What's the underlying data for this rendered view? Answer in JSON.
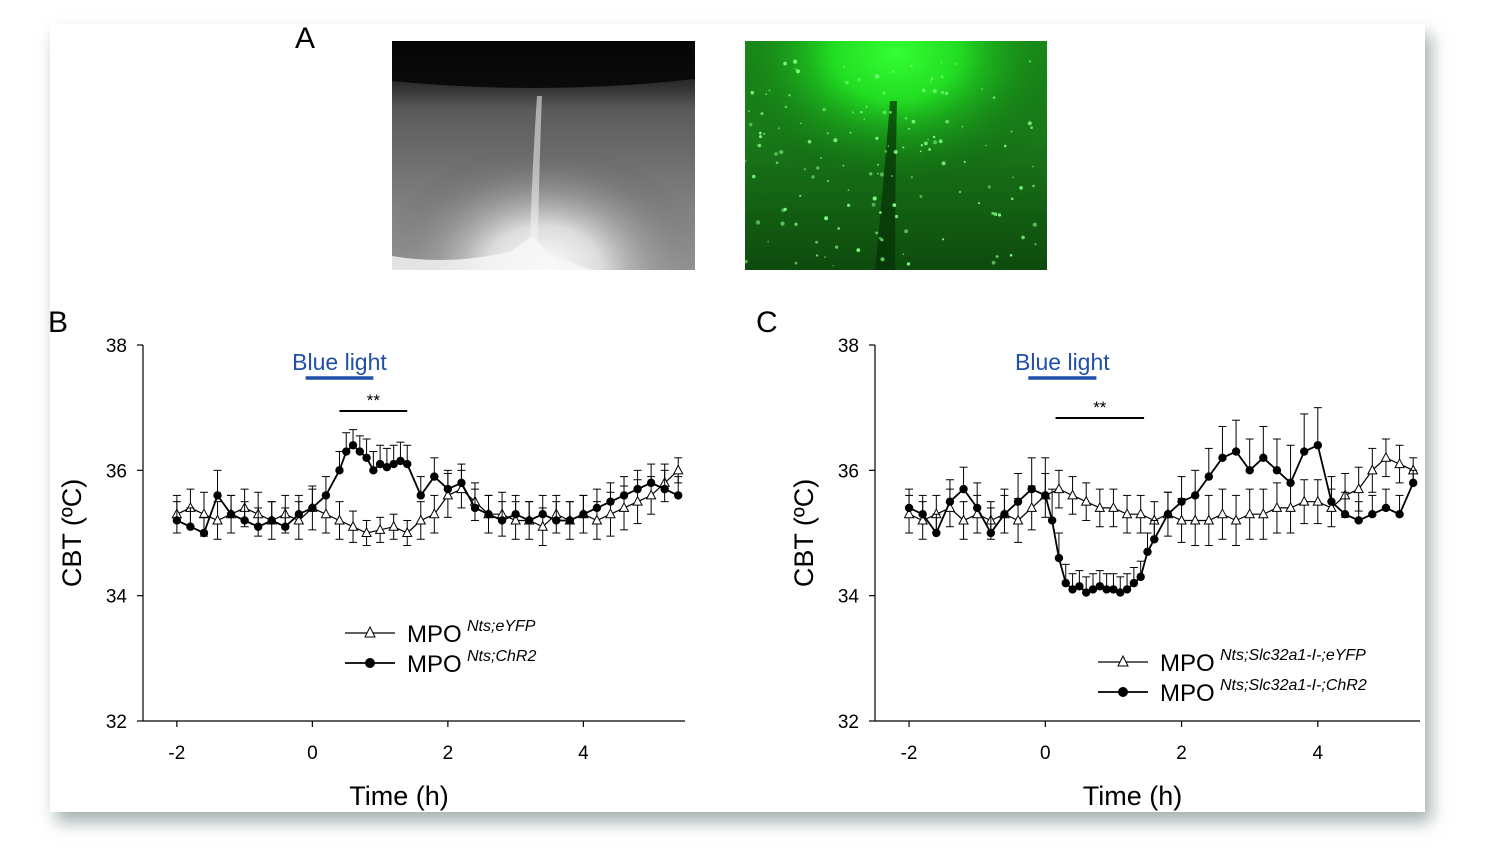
{
  "panels": {
    "a_label": "A",
    "b_label": "B",
    "c_label": "C"
  },
  "images": {
    "bright_field_icon": "brightfield-micrograph",
    "fluorescence_icon": "eyfp-fluorescence-micrograph"
  },
  "colors": {
    "blue_light": "#1f4fa8",
    "fluorescence": "#22dd22"
  },
  "chart_data": [
    {
      "type": "line",
      "panel": "B",
      "xlabel": "Time (h)",
      "ylabel": "CBT (ºC)",
      "xlim": [
        -2.5,
        5.5
      ],
      "ylim": [
        32,
        38
      ],
      "xticks": [
        -2,
        0,
        2,
        4
      ],
      "yticks": [
        32,
        34,
        36,
        38
      ],
      "light_label": "Blue light",
      "light_interval": [
        -0.1,
        0.9
      ],
      "sig_label": "**",
      "sig_interval": [
        0.4,
        1.4
      ],
      "legend_position": "bottom-center",
      "series": [
        {
          "name_main": "MPO",
          "name_sup": "Nts;eYFP",
          "marker": "open-triangle",
          "x": [
            -2,
            -1.8,
            -1.6,
            -1.4,
            -1.2,
            -1,
            -0.8,
            -0.6,
            -0.4,
            -0.2,
            0,
            0.2,
            0.4,
            0.6,
            0.8,
            1,
            1.2,
            1.4,
            1.6,
            1.8,
            2,
            2.2,
            2.4,
            2.6,
            2.8,
            3,
            3.2,
            3.4,
            3.6,
            3.8,
            4,
            4.2,
            4.4,
            4.6,
            4.8,
            5,
            5.2,
            5.4
          ],
          "y": [
            35.3,
            35.4,
            35.3,
            35.2,
            35.3,
            35.4,
            35.3,
            35.2,
            35.3,
            35.2,
            35.4,
            35.3,
            35.2,
            35.1,
            35.0,
            35.05,
            35.1,
            35.0,
            35.2,
            35.3,
            35.6,
            35.7,
            35.5,
            35.3,
            35.3,
            35.2,
            35.2,
            35.1,
            35.3,
            35.2,
            35.3,
            35.2,
            35.3,
            35.4,
            35.5,
            35.6,
            35.8,
            36.0
          ],
          "err": [
            0.3,
            0.3,
            0.35,
            0.3,
            0.3,
            0.3,
            0.35,
            0.3,
            0.3,
            0.3,
            0.35,
            0.3,
            0.3,
            0.25,
            0.2,
            0.2,
            0.2,
            0.2,
            0.3,
            0.3,
            0.35,
            0.3,
            0.3,
            0.3,
            0.35,
            0.3,
            0.3,
            0.3,
            0.3,
            0.3,
            0.3,
            0.3,
            0.35,
            0.35,
            0.35,
            0.3,
            0.3,
            0.2
          ]
        },
        {
          "name_main": "MPO",
          "name_sup": "Nts;ChR2",
          "marker": "filled-circle",
          "x": [
            -2,
            -1.8,
            -1.6,
            -1.4,
            -1.2,
            -1,
            -0.8,
            -0.6,
            -0.4,
            -0.2,
            0,
            0.2,
            0.4,
            0.5,
            0.6,
            0.7,
            0.8,
            0.9,
            1,
            1.1,
            1.2,
            1.3,
            1.4,
            1.6,
            1.8,
            2,
            2.2,
            2.4,
            2.6,
            2.8,
            3,
            3.2,
            3.4,
            3.6,
            3.8,
            4,
            4.2,
            4.4,
            4.6,
            4.8,
            5,
            5.2,
            5.4
          ],
          "y": [
            35.2,
            35.1,
            35.0,
            35.6,
            35.3,
            35.2,
            35.1,
            35.2,
            35.1,
            35.3,
            35.4,
            35.6,
            36.0,
            36.3,
            36.4,
            36.3,
            36.2,
            36.0,
            36.1,
            36.05,
            36.1,
            36.15,
            36.1,
            35.6,
            35.9,
            35.7,
            35.8,
            35.4,
            35.3,
            35.2,
            35.3,
            35.2,
            35.3,
            35.2,
            35.2,
            35.3,
            35.4,
            35.5,
            35.6,
            35.7,
            35.8,
            35.7,
            35.6
          ],
          "err": [
            0.3,
            0.3,
            0.25,
            0.4,
            0.3,
            0.3,
            0.3,
            0.3,
            0.3,
            0.3,
            0.3,
            0.3,
            0.3,
            0.3,
            0.25,
            0.25,
            0.3,
            0.3,
            0.3,
            0.3,
            0.3,
            0.3,
            0.3,
            0.3,
            0.3,
            0.3,
            0.3,
            0.3,
            0.3,
            0.3,
            0.3,
            0.3,
            0.3,
            0.3,
            0.3,
            0.3,
            0.3,
            0.3,
            0.3,
            0.3,
            0.3,
            0.3,
            0.3
          ]
        }
      ]
    },
    {
      "type": "line",
      "panel": "C",
      "xlabel": "Time (h)",
      "ylabel": "CBT (ºC)",
      "xlim": [
        -2.5,
        5.5
      ],
      "ylim": [
        32,
        38
      ],
      "xticks": [
        -2,
        0,
        2,
        4
      ],
      "yticks": [
        32,
        34,
        36,
        38
      ],
      "light_label": "Blue light",
      "light_interval": [
        -0.25,
        0.75
      ],
      "sig_label": "**",
      "sig_interval": [
        0.15,
        1.45
      ],
      "legend_position": "bottom-right",
      "series": [
        {
          "name_main": "MPO",
          "name_sup": "Nts;Slc32a1-I-;eYFP",
          "marker": "open-triangle",
          "x": [
            -2,
            -1.8,
            -1.6,
            -1.4,
            -1.2,
            -1,
            -0.8,
            -0.6,
            -0.4,
            -0.2,
            0,
            0.2,
            0.4,
            0.6,
            0.8,
            1,
            1.2,
            1.4,
            1.6,
            1.8,
            2,
            2.2,
            2.4,
            2.6,
            2.8,
            3,
            3.2,
            3.4,
            3.6,
            3.8,
            4,
            4.2,
            4.4,
            4.6,
            4.8,
            5,
            5.2,
            5.4
          ],
          "y": [
            35.3,
            35.2,
            35.3,
            35.4,
            35.2,
            35.3,
            35.2,
            35.3,
            35.2,
            35.4,
            35.6,
            35.7,
            35.6,
            35.5,
            35.4,
            35.4,
            35.3,
            35.3,
            35.2,
            35.3,
            35.2,
            35.2,
            35.2,
            35.3,
            35.2,
            35.3,
            35.3,
            35.4,
            35.4,
            35.5,
            35.5,
            35.4,
            35.6,
            35.7,
            36.0,
            36.2,
            36.1,
            36.0
          ],
          "err": [
            0.3,
            0.3,
            0.3,
            0.3,
            0.3,
            0.3,
            0.3,
            0.3,
            0.35,
            0.35,
            0.35,
            0.3,
            0.3,
            0.3,
            0.3,
            0.3,
            0.3,
            0.3,
            0.3,
            0.35,
            0.35,
            0.4,
            0.4,
            0.4,
            0.4,
            0.4,
            0.4,
            0.4,
            0.4,
            0.35,
            0.35,
            0.3,
            0.35,
            0.35,
            0.35,
            0.3,
            0.3,
            0.2
          ]
        },
        {
          "name_main": "MPO",
          "name_sup": "Nts;Slc32a1-I-;ChR2",
          "marker": "filled-circle",
          "x": [
            -2,
            -1.8,
            -1.6,
            -1.4,
            -1.2,
            -1,
            -0.8,
            -0.6,
            -0.4,
            -0.2,
            0,
            0.1,
            0.2,
            0.3,
            0.4,
            0.5,
            0.6,
            0.7,
            0.8,
            0.9,
            1,
            1.1,
            1.2,
            1.3,
            1.4,
            1.5,
            1.6,
            1.8,
            2,
            2.2,
            2.4,
            2.6,
            2.8,
            3,
            3.2,
            3.4,
            3.6,
            3.8,
            4,
            4.2,
            4.4,
            4.6,
            4.8,
            5,
            5.2,
            5.4
          ],
          "y": [
            35.4,
            35.3,
            35.0,
            35.5,
            35.7,
            35.4,
            35.0,
            35.3,
            35.5,
            35.7,
            35.6,
            35.2,
            34.6,
            34.2,
            34.1,
            34.15,
            34.05,
            34.1,
            34.15,
            34.1,
            34.1,
            34.05,
            34.1,
            34.2,
            34.3,
            34.7,
            34.9,
            35.3,
            35.5,
            35.6,
            35.9,
            36.2,
            36.3,
            36.0,
            36.2,
            36.0,
            35.8,
            36.3,
            36.4,
            35.5,
            35.3,
            35.2,
            35.3,
            35.4,
            35.3,
            35.8
          ],
          "err": [
            0.3,
            0.3,
            0.3,
            0.35,
            0.35,
            0.4,
            0.4,
            0.4,
            0.45,
            0.5,
            0.6,
            0.5,
            0.4,
            0.3,
            0.25,
            0.25,
            0.25,
            0.25,
            0.25,
            0.25,
            0.25,
            0.25,
            0.25,
            0.25,
            0.25,
            0.3,
            0.3,
            0.35,
            0.4,
            0.4,
            0.45,
            0.5,
            0.5,
            0.5,
            0.5,
            0.5,
            0.6,
            0.6,
            0.6,
            0.4,
            0.35,
            0.3,
            0.3,
            0.3,
            0.3,
            0.2
          ]
        }
      ]
    }
  ]
}
